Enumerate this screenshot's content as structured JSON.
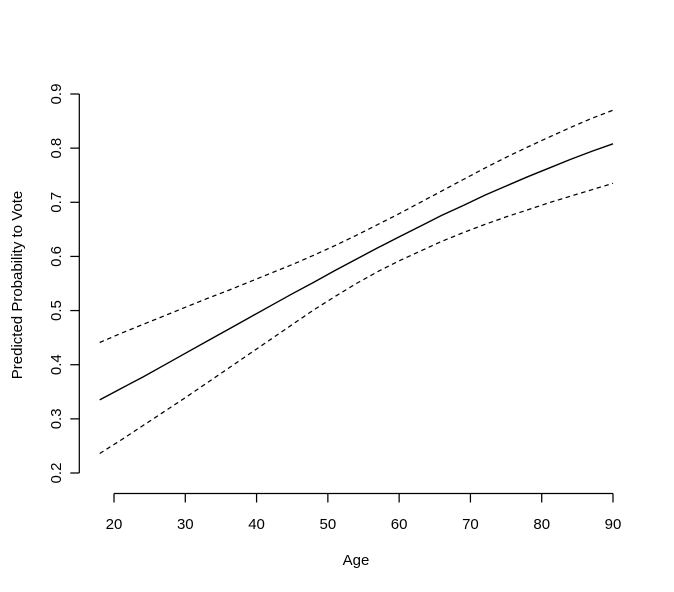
{
  "figure": {
    "background": "#ffffff",
    "line_color": "#000000"
  },
  "chart_data": {
    "type": "line",
    "title": "",
    "xlabel": "Age",
    "ylabel": "Predicted Probability to Vote",
    "xlim": [
      18,
      90
    ],
    "ylim": [
      0.2,
      0.9
    ],
    "grid": false,
    "legend_position": "none",
    "xticks": [
      20,
      30,
      40,
      50,
      60,
      70,
      80,
      90
    ],
    "xtick_labels": [
      "20",
      "30",
      "40",
      "50",
      "60",
      "70",
      "80",
      "90"
    ],
    "yticks": [
      0.2,
      0.3,
      0.4,
      0.5,
      0.6,
      0.7,
      0.8,
      0.9
    ],
    "ytick_labels": [
      "0.2",
      "0.3",
      "0.4",
      "0.5",
      "0.6",
      "0.7",
      "0.8",
      "0.9"
    ],
    "x": [
      18,
      21,
      24,
      27,
      30,
      33,
      36,
      39,
      42,
      45,
      48,
      51,
      54,
      57,
      60,
      63,
      66,
      69,
      72,
      75,
      78,
      81,
      84,
      87,
      90
    ],
    "series": [
      {
        "name": "predicted-probability",
        "line_style": "solid",
        "values": [
          0.335,
          0.356,
          0.377,
          0.399,
          0.421,
          0.443,
          0.465,
          0.487,
          0.509,
          0.531,
          0.552,
          0.574,
          0.595,
          0.616,
          0.636,
          0.656,
          0.676,
          0.694,
          0.713,
          0.73,
          0.747,
          0.763,
          0.779,
          0.794,
          0.808
        ]
      },
      {
        "name": "upper-confidence-band",
        "line_style": "dashed",
        "values": [
          0.441,
          0.458,
          0.474,
          0.49,
          0.506,
          0.522,
          0.537,
          0.553,
          0.569,
          0.585,
          0.602,
          0.62,
          0.639,
          0.659,
          0.679,
          0.7,
          0.721,
          0.742,
          0.763,
          0.783,
          0.802,
          0.82,
          0.838,
          0.855,
          0.87
        ]
      },
      {
        "name": "lower-confidence-band",
        "line_style": "dashed",
        "values": [
          0.236,
          0.261,
          0.287,
          0.313,
          0.339,
          0.366,
          0.393,
          0.42,
          0.447,
          0.474,
          0.501,
          0.526,
          0.55,
          0.572,
          0.592,
          0.61,
          0.628,
          0.644,
          0.659,
          0.673,
          0.686,
          0.699,
          0.711,
          0.723,
          0.735
        ]
      }
    ]
  }
}
